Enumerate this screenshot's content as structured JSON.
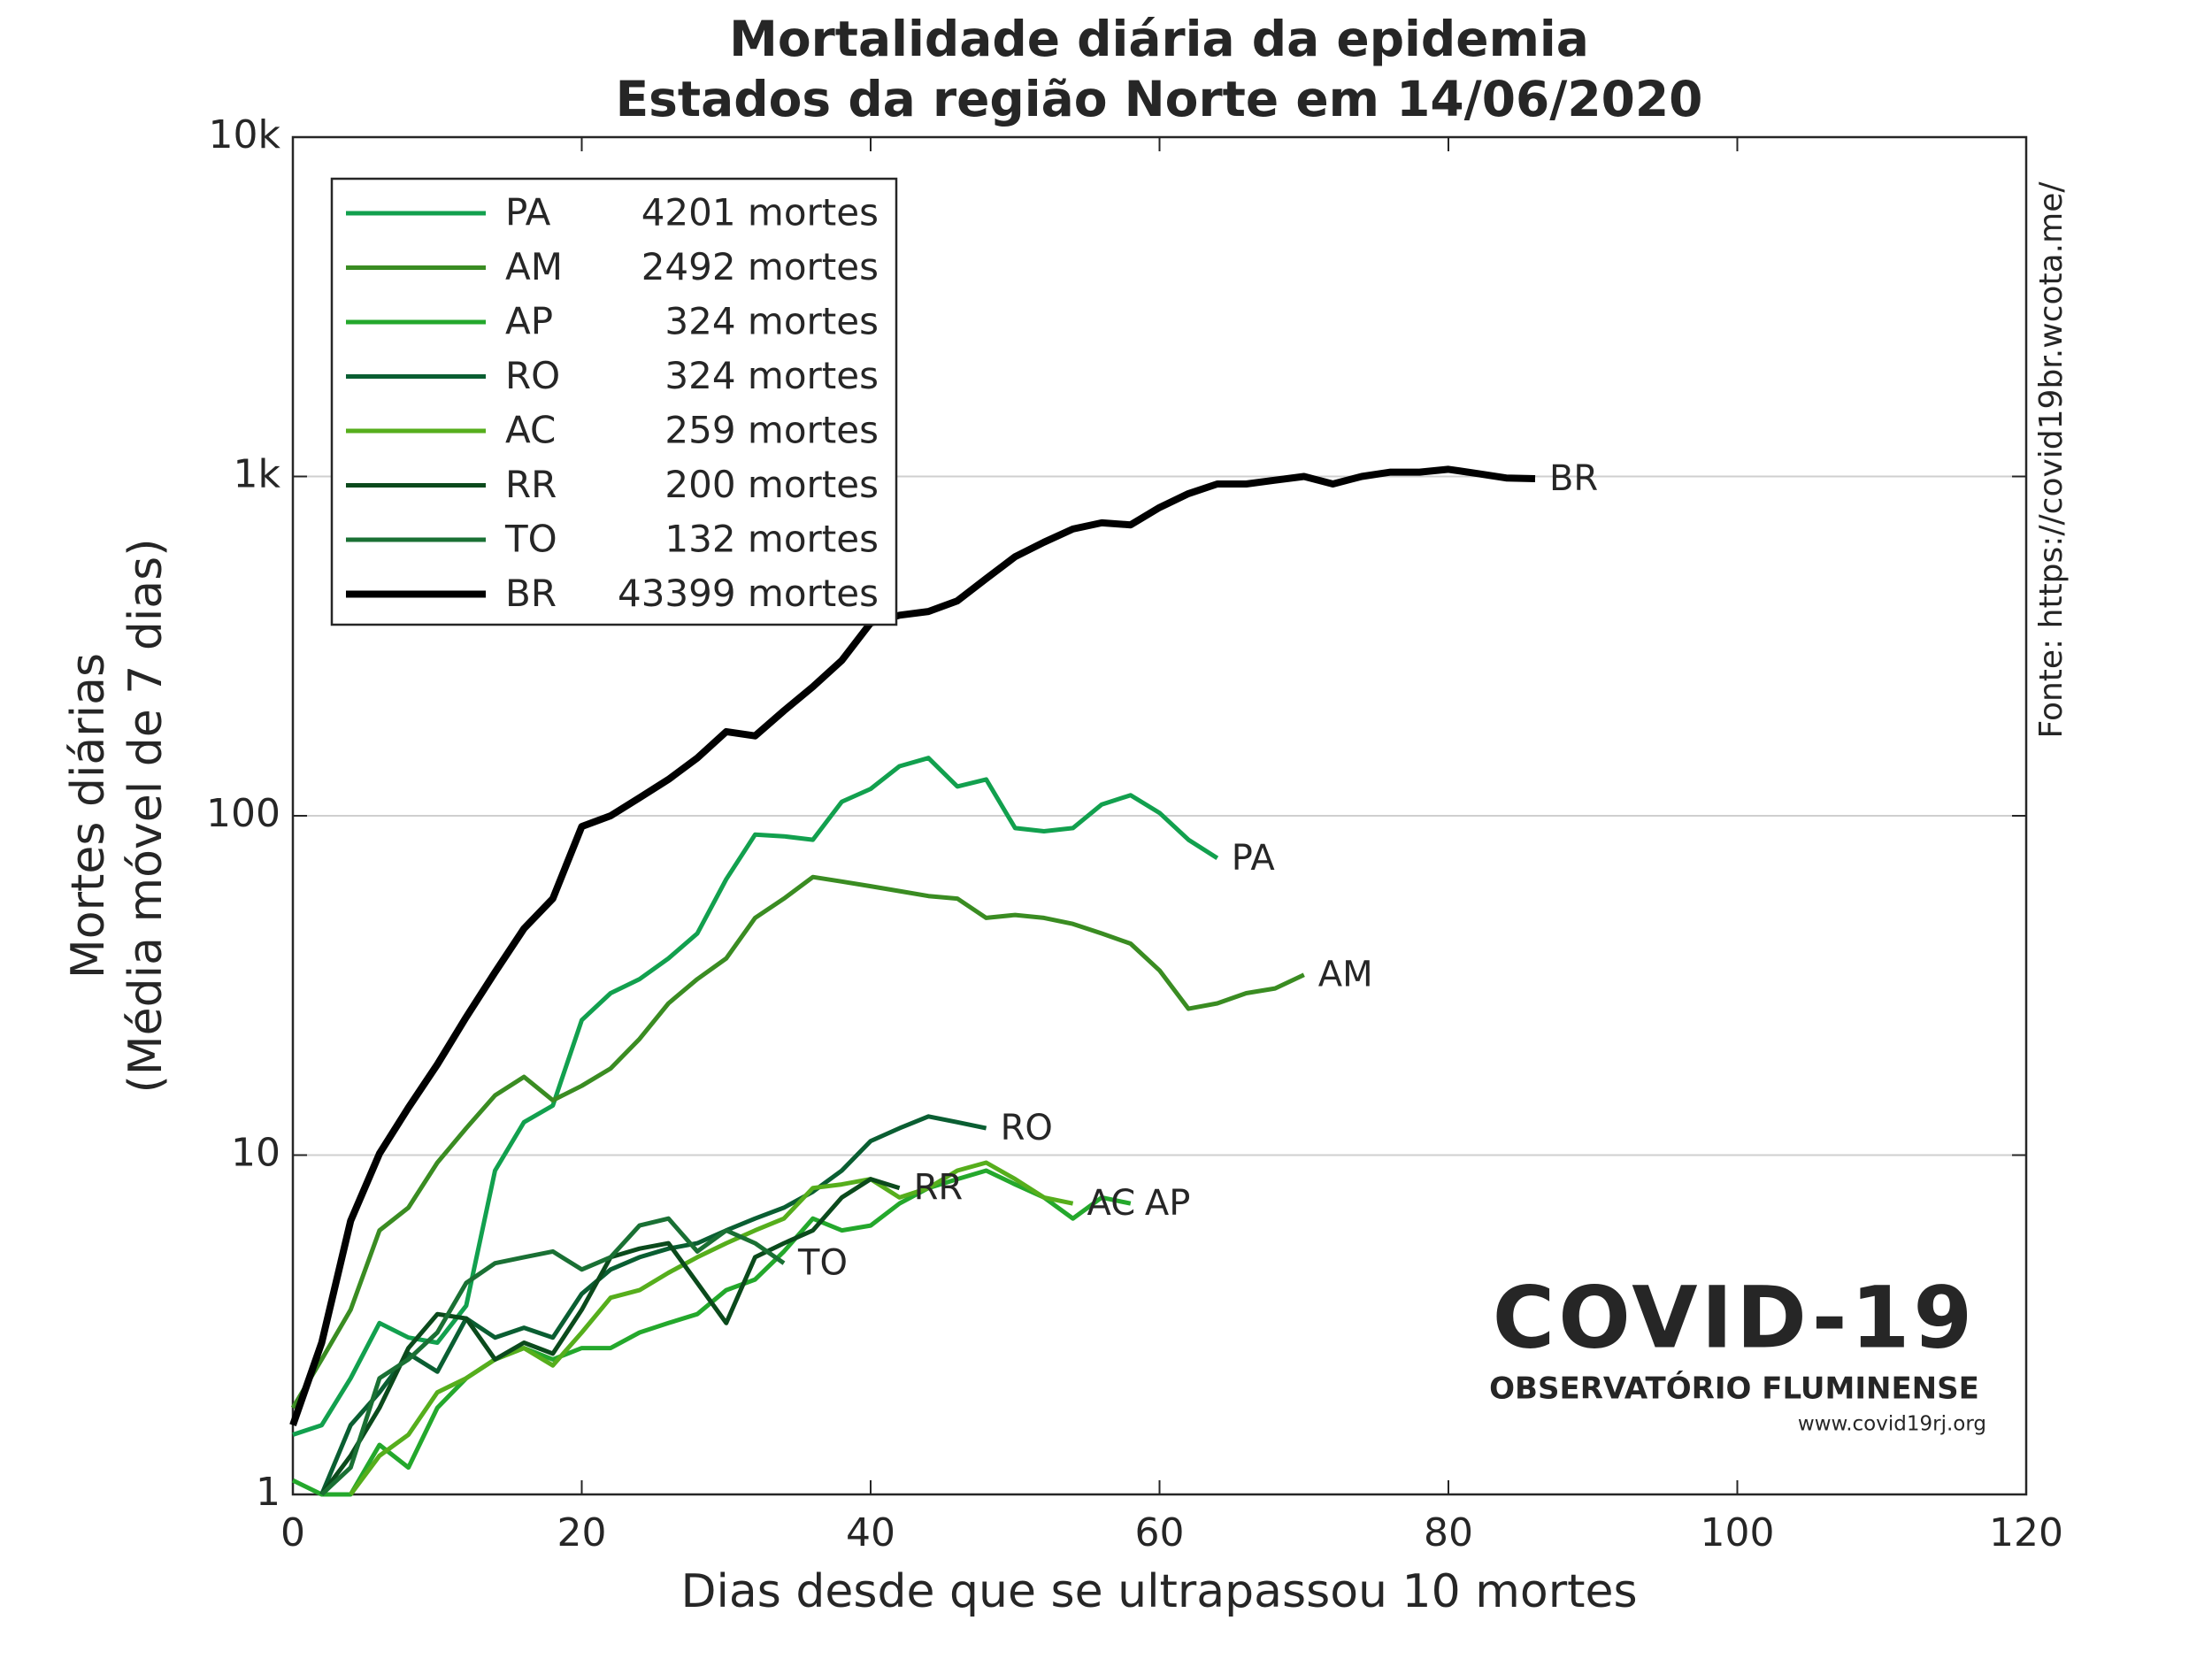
{
  "chart_data": {
    "type": "line",
    "title": "Mortalidade diária da epidemia",
    "subtitle": "Estados da região Norte em 14/06/2020",
    "x_label": "Dias desde que se ultrapassou 10 mortes",
    "y_label": "Mortes diárias",
    "y_label_2": "(Média móvel de 7 dias)",
    "source": "Fonte: https://covid19br.wcota.me/",
    "logo_title": "COVID-19",
    "logo_subtitle": "OBSERVATÓRIO FLUMINENSE",
    "logo_url": "www.covid19rj.org",
    "log_scale_y": true,
    "grid": true,
    "legend": "upper left",
    "xlim": [
      0,
      120
    ],
    "xticks": [
      0,
      20,
      40,
      60,
      80,
      100,
      120
    ],
    "ylim": [
      1,
      10000
    ],
    "yticks": [
      1,
      10,
      100,
      {
        "value": 1000,
        "label": "1k"
      },
      {
        "value": 10000,
        "label": "10k"
      }
    ],
    "x": [
      0,
      2,
      4,
      6,
      8,
      10,
      12,
      14,
      16,
      18,
      20,
      22,
      24,
      26,
      28,
      30,
      32,
      34,
      36,
      38,
      40,
      42,
      44,
      46,
      48,
      50,
      52,
      54,
      56,
      58,
      60,
      62,
      64,
      66,
      68,
      70,
      72,
      74,
      76,
      78,
      80,
      82,
      84,
      86
    ],
    "series": [
      {
        "name": "PA",
        "deaths_label": "4201 mortes",
        "color": "#12a04e",
        "values": [
          1.5,
          1.6,
          2.2,
          3.2,
          2.9,
          2.8,
          3.6,
          9,
          12.5,
          14,
          25,
          30,
          33,
          38,
          45,
          65,
          88,
          87,
          85,
          110,
          120,
          140,
          148,
          122,
          128,
          92,
          90,
          92,
          108,
          115,
          102,
          85,
          75,
          null,
          null,
          null,
          null,
          null,
          null,
          null,
          null,
          null,
          null,
          null
        ]
      },
      {
        "name": "AM",
        "deaths_label": "2492 mortes",
        "color": "#3a8c22",
        "values": [
          1.8,
          2.5,
          3.5,
          6,
          7,
          9.5,
          12,
          15,
          17,
          14.5,
          16,
          18,
          22,
          28,
          33,
          38,
          50,
          57,
          66,
          64,
          62,
          60,
          58,
          57,
          50,
          51,
          50,
          48,
          45,
          42,
          35,
          27,
          28,
          30,
          31,
          34,
          null,
          null,
          null,
          null,
          null,
          null,
          null,
          null
        ]
      },
      {
        "name": "AP",
        "deaths_label": "324 mortes",
        "color": "#24a82c",
        "values": [
          1.1,
          1.0,
          1.0,
          1.4,
          1.2,
          1.8,
          2.2,
          2.5,
          2.7,
          2.5,
          2.7,
          2.7,
          3.0,
          3.2,
          3.4,
          4.0,
          4.3,
          5.2,
          6.5,
          6.0,
          6.2,
          7.2,
          8.0,
          8.5,
          9.0,
          8.2,
          7.5,
          6.5,
          7.5,
          7.2,
          null,
          null,
          null,
          null,
          null,
          null,
          null,
          null,
          null,
          null,
          null,
          null,
          null,
          null
        ]
      },
      {
        "name": "RO",
        "deaths_label": "324 mortes",
        "color": "#0a5e32",
        "values": [
          null,
          1.0,
          1.6,
          2.0,
          2.6,
          2.3,
          3.3,
          2.9,
          3.1,
          2.9,
          3.9,
          4.6,
          5.0,
          5.3,
          5.5,
          6.0,
          6.5,
          7.0,
          7.8,
          9.0,
          11,
          12,
          13,
          12.5,
          12,
          null,
          null,
          null,
          null,
          null,
          null,
          null,
          null,
          null,
          null,
          null,
          null,
          null,
          null,
          null,
          null,
          null,
          null,
          null
        ]
      },
      {
        "name": "AC",
        "deaths_label": "259 mortes",
        "color": "#56ae1c",
        "values": [
          null,
          null,
          1.0,
          1.3,
          1.5,
          2.0,
          2.2,
          2.5,
          2.7,
          2.4,
          3.0,
          3.8,
          4.0,
          4.5,
          5.0,
          5.5,
          6.0,
          6.5,
          8.0,
          8.2,
          8.5,
          7.5,
          8.0,
          9.0,
          9.5,
          8.5,
          7.5,
          7.2,
          null,
          null,
          null,
          null,
          null,
          null,
          null,
          null,
          null,
          null,
          null,
          null,
          null,
          null,
          null,
          null
        ]
      },
      {
        "name": "RR",
        "deaths_label": "200 mortes",
        "color": "#0b4a1c",
        "values": [
          null,
          1.0,
          1.3,
          1.8,
          2.7,
          3.4,
          3.3,
          2.5,
          2.8,
          2.6,
          3.5,
          5.0,
          5.3,
          5.5,
          4.2,
          3.2,
          5.0,
          5.5,
          6.0,
          7.5,
          8.5,
          8.0,
          null,
          null,
          null,
          null,
          null,
          null,
          null,
          null,
          null,
          null,
          null,
          null,
          null,
          null,
          null,
          null,
          null,
          null,
          null,
          null,
          null,
          null
        ]
      },
      {
        "name": "TO",
        "deaths_label": "132 mortes",
        "color": "#1a7034",
        "values": [
          null,
          1.0,
          1.2,
          2.2,
          2.5,
          3.0,
          4.2,
          4.8,
          5.0,
          5.2,
          4.6,
          5.0,
          6.2,
          6.5,
          5.2,
          6.0,
          5.5,
          4.8,
          null,
          null,
          null,
          null,
          null,
          null,
          null,
          null,
          null,
          null,
          null,
          null,
          null,
          null,
          null,
          null,
          null,
          null,
          null,
          null,
          null,
          null,
          null,
          null,
          null,
          null
        ]
      },
      {
        "name": "BR",
        "deaths_label": "43399 mortes",
        "color": "#000000",
        "values": [
          1.6,
          2.8,
          6.4,
          10.1,
          13.8,
          18.5,
          25.5,
          34.6,
          46.5,
          57,
          93,
          100,
          113,
          128,
          148,
          177,
          172,
          204,
          240,
          287,
          370,
          390,
          400,
          430,
          500,
          580,
          640,
          700,
          730,
          720,
          810,
          890,
          950,
          950,
          975,
          1000,
          950,
          1000,
          1030,
          1030,
          1050,
          1020,
          990,
          985
        ]
      }
    ]
  }
}
